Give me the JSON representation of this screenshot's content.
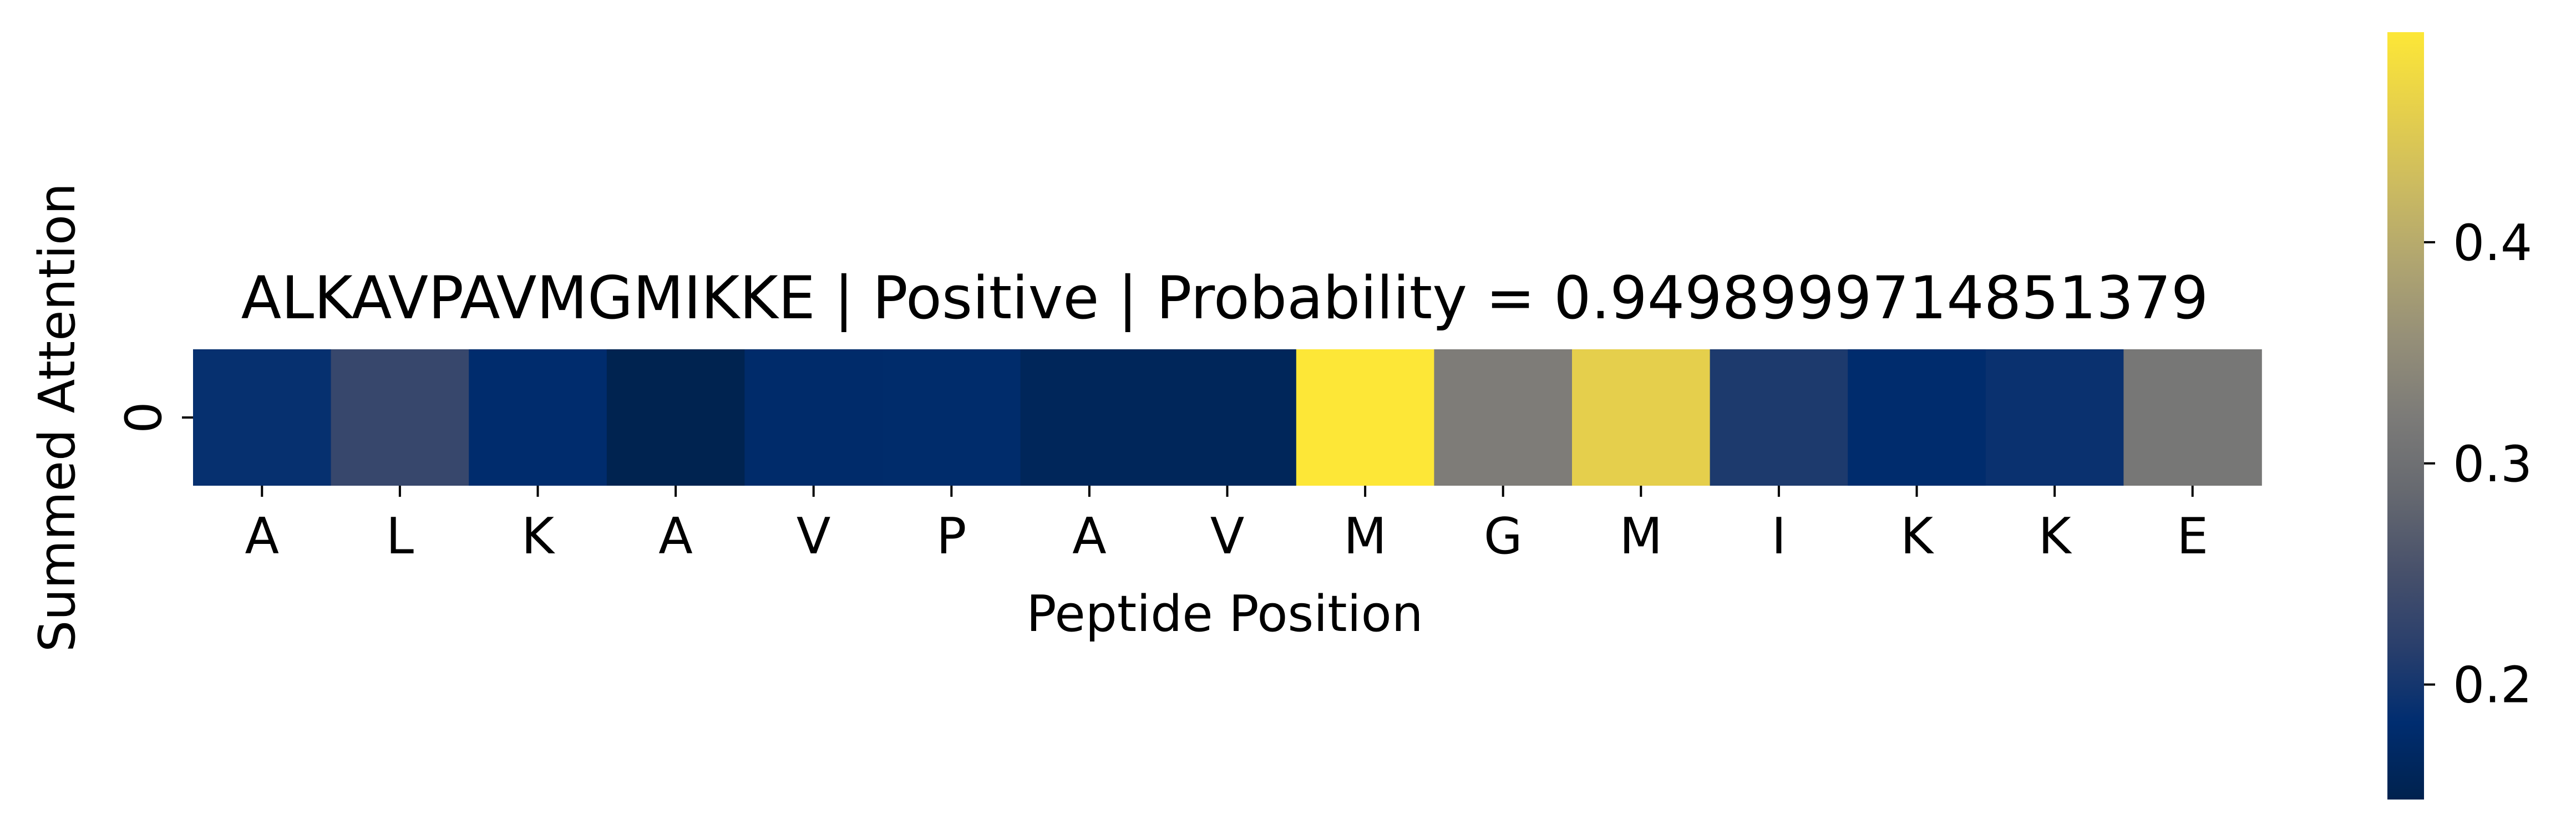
{
  "chart_data": {
    "type": "heatmap",
    "title": "ALKAVPAVMGMIKKE | Positive | Probability = 0.9498999714851379",
    "xlabel": "Peptide Position",
    "ylabel": "Summed Attention",
    "x_categories": [
      "A",
      "L",
      "K",
      "A",
      "V",
      "P",
      "A",
      "V",
      "M",
      "G",
      "M",
      "I",
      "K",
      "K",
      "E"
    ],
    "y_categories": [
      "0"
    ],
    "values": [
      [
        0.188,
        0.232,
        0.18,
        0.15,
        0.177,
        0.178,
        0.16,
        0.16,
        0.496,
        0.324,
        0.459,
        0.207,
        0.18,
        0.191,
        0.313
      ]
    ],
    "colormap": "cividis",
    "colorbar": {
      "vmin": 0.148,
      "vmax": 0.495,
      "ticks": [
        0.2,
        0.3,
        0.4
      ],
      "tick_labels": [
        "0.2",
        "0.3",
        "0.4"
      ]
    }
  }
}
